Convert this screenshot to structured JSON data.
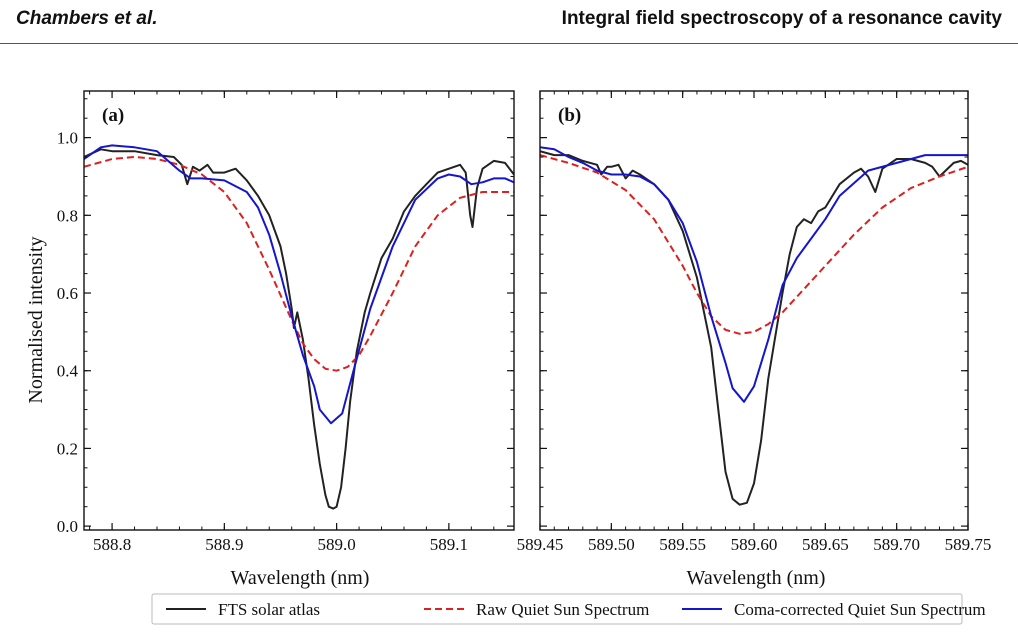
{
  "header": {
    "left": "Chambers et al.",
    "right": "Integral field spectroscopy of a resonance cavity"
  },
  "shared": {
    "ylabel": "Normalised intensity",
    "xlabel": "Wavelength (nm)",
    "legend": [
      {
        "name": "FTS solar atlas",
        "color": "#222222",
        "dash": "solid"
      },
      {
        "name": "Raw Quiet Sun Spectrum",
        "color": "#dd2020",
        "dash": "dashed"
      },
      {
        "name": "Coma-corrected Quiet Sun Spectrum",
        "color": "#1515cc",
        "dash": "solid"
      }
    ]
  },
  "chart_data": [
    {
      "type": "line",
      "panel_label": "(a)",
      "xlabel": "Wavelength (nm)",
      "ylabel": "Normalised intensity",
      "xlim": [
        588.775,
        589.158
      ],
      "ylim": [
        -0.01,
        1.12
      ],
      "xticks": [
        588.8,
        588.9,
        589.0,
        589.1
      ],
      "xtick_labels": [
        "588.8",
        "588.9",
        "589.0",
        "589.1"
      ],
      "yticks": [
        0.0,
        0.2,
        0.4,
        0.6,
        0.8,
        1.0
      ],
      "ytick_labels": [
        "0.0",
        "0.2",
        "0.4",
        "0.6",
        "0.8",
        "1.0"
      ],
      "series": [
        {
          "name": "FTS solar atlas",
          "color": "#222222",
          "dash": "solid",
          "x": [
            588.775,
            588.79,
            588.8,
            588.82,
            588.84,
            588.855,
            588.862,
            588.867,
            588.872,
            588.878,
            588.885,
            588.89,
            588.9,
            588.91,
            588.92,
            588.93,
            588.94,
            588.95,
            588.955,
            588.96,
            588.962,
            588.965,
            588.97,
            588.975,
            588.98,
            588.985,
            588.99,
            588.993,
            588.997,
            589.0,
            589.004,
            589.008,
            589.012,
            589.018,
            589.025,
            589.03,
            589.04,
            589.05,
            589.06,
            589.07,
            589.08,
            589.09,
            589.1,
            589.11,
            589.115,
            589.119,
            589.121,
            589.125,
            589.13,
            589.14,
            589.15,
            589.158
          ],
          "y": [
            0.95,
            0.97,
            0.965,
            0.965,
            0.955,
            0.95,
            0.93,
            0.88,
            0.925,
            0.915,
            0.93,
            0.91,
            0.91,
            0.92,
            0.89,
            0.85,
            0.8,
            0.72,
            0.65,
            0.56,
            0.51,
            0.55,
            0.48,
            0.38,
            0.26,
            0.16,
            0.08,
            0.05,
            0.045,
            0.05,
            0.1,
            0.2,
            0.32,
            0.45,
            0.55,
            0.6,
            0.69,
            0.74,
            0.81,
            0.85,
            0.88,
            0.91,
            0.92,
            0.93,
            0.91,
            0.8,
            0.77,
            0.87,
            0.92,
            0.94,
            0.935,
            0.905
          ]
        },
        {
          "name": "Raw Quiet Sun Spectrum",
          "color": "#dd2020",
          "dash": "dashed",
          "x": [
            588.775,
            588.8,
            588.82,
            588.84,
            588.86,
            588.88,
            588.9,
            588.92,
            588.94,
            588.96,
            588.97,
            588.98,
            588.99,
            589.0,
            589.01,
            589.02,
            589.03,
            589.05,
            589.07,
            589.09,
            589.11,
            589.13,
            589.158
          ],
          "y": [
            0.925,
            0.945,
            0.95,
            0.945,
            0.93,
            0.905,
            0.86,
            0.78,
            0.66,
            0.53,
            0.47,
            0.43,
            0.405,
            0.4,
            0.41,
            0.44,
            0.49,
            0.6,
            0.72,
            0.8,
            0.845,
            0.86,
            0.86
          ]
        },
        {
          "name": "Coma-corrected Quiet Sun Spectrum",
          "color": "#1515cc",
          "dash": "solid",
          "x": [
            588.775,
            588.79,
            588.8,
            588.82,
            588.84,
            588.86,
            588.87,
            588.88,
            588.9,
            588.92,
            588.93,
            588.94,
            588.95,
            588.96,
            588.97,
            588.98,
            588.985,
            588.995,
            589.005,
            589.015,
            589.03,
            589.05,
            589.07,
            589.09,
            589.1,
            589.11,
            589.12,
            589.13,
            589.14,
            589.15,
            589.158
          ],
          "y": [
            0.945,
            0.975,
            0.98,
            0.975,
            0.965,
            0.915,
            0.895,
            0.895,
            0.89,
            0.86,
            0.82,
            0.75,
            0.65,
            0.54,
            0.44,
            0.36,
            0.3,
            0.265,
            0.29,
            0.4,
            0.56,
            0.72,
            0.84,
            0.895,
            0.905,
            0.9,
            0.88,
            0.885,
            0.895,
            0.895,
            0.885
          ]
        }
      ]
    },
    {
      "type": "line",
      "panel_label": "(b)",
      "xlabel": "Wavelength (nm)",
      "ylabel": "",
      "xlim": [
        589.45,
        589.75
      ],
      "ylim": [
        -0.01,
        1.12
      ],
      "xticks": [
        589.45,
        589.5,
        589.55,
        589.6,
        589.65,
        589.7,
        589.75
      ],
      "xtick_labels": [
        "589.45",
        "589.50",
        "589.55",
        "589.60",
        "589.65",
        "589.70",
        "589.75"
      ],
      "yticks": [
        0.0,
        0.2,
        0.4,
        0.6,
        0.8,
        1.0
      ],
      "ytick_labels": [],
      "series": [
        {
          "name": "FTS solar atlas",
          "color": "#222222",
          "dash": "solid",
          "x": [
            589.45,
            589.46,
            589.47,
            589.48,
            589.49,
            589.493,
            589.497,
            589.5,
            589.505,
            589.51,
            589.515,
            589.52,
            589.53,
            589.54,
            589.55,
            589.56,
            589.57,
            589.575,
            589.58,
            589.585,
            589.59,
            589.595,
            589.6,
            589.605,
            589.61,
            589.62,
            589.625,
            589.63,
            589.635,
            589.64,
            589.645,
            589.65,
            589.66,
            589.67,
            589.675,
            589.68,
            589.685,
            589.69,
            589.7,
            589.71,
            589.72,
            589.725,
            589.73,
            589.74,
            589.745,
            589.75
          ],
          "y": [
            0.965,
            0.955,
            0.955,
            0.94,
            0.93,
            0.905,
            0.925,
            0.925,
            0.93,
            0.895,
            0.915,
            0.905,
            0.88,
            0.84,
            0.76,
            0.64,
            0.46,
            0.3,
            0.14,
            0.07,
            0.055,
            0.06,
            0.11,
            0.22,
            0.38,
            0.6,
            0.7,
            0.77,
            0.79,
            0.78,
            0.81,
            0.82,
            0.88,
            0.91,
            0.92,
            0.9,
            0.86,
            0.92,
            0.945,
            0.945,
            0.935,
            0.925,
            0.9,
            0.935,
            0.94,
            0.93
          ]
        },
        {
          "name": "Raw Quiet Sun Spectrum",
          "color": "#dd2020",
          "dash": "dashed",
          "x": [
            589.45,
            589.47,
            589.49,
            589.51,
            589.53,
            589.55,
            589.56,
            589.57,
            589.58,
            589.59,
            589.6,
            589.61,
            589.62,
            589.63,
            589.65,
            589.67,
            589.69,
            589.71,
            589.73,
            589.75
          ],
          "y": [
            0.955,
            0.935,
            0.91,
            0.865,
            0.79,
            0.67,
            0.6,
            0.54,
            0.505,
            0.495,
            0.5,
            0.52,
            0.55,
            0.59,
            0.67,
            0.75,
            0.82,
            0.87,
            0.9,
            0.925
          ]
        },
        {
          "name": "Coma-corrected Quiet Sun Spectrum",
          "color": "#1515cc",
          "dash": "solid",
          "x": [
            589.45,
            589.46,
            589.47,
            589.48,
            589.49,
            589.5,
            589.51,
            589.52,
            589.53,
            589.54,
            589.55,
            589.56,
            589.57,
            589.58,
            589.585,
            589.593,
            589.6,
            589.61,
            589.62,
            589.63,
            589.64,
            589.65,
            589.66,
            589.68,
            589.7,
            589.72,
            589.74,
            589.75
          ],
          "y": [
            0.975,
            0.97,
            0.95,
            0.935,
            0.915,
            0.905,
            0.905,
            0.9,
            0.88,
            0.84,
            0.78,
            0.68,
            0.54,
            0.42,
            0.355,
            0.32,
            0.36,
            0.48,
            0.62,
            0.69,
            0.74,
            0.79,
            0.85,
            0.915,
            0.935,
            0.955,
            0.955,
            0.955
          ]
        }
      ]
    }
  ]
}
